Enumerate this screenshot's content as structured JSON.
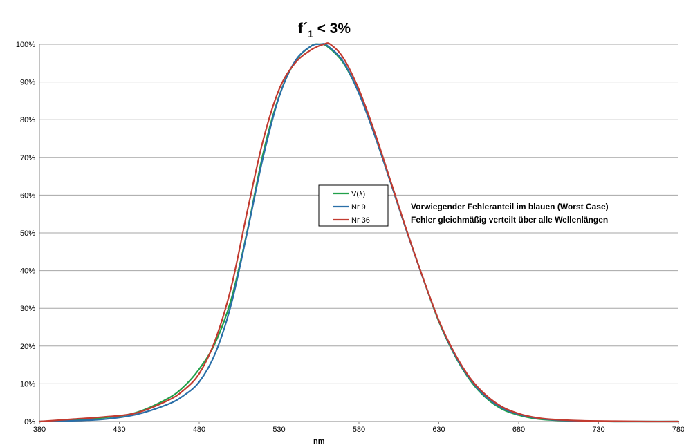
{
  "chart_data": {
    "type": "line",
    "title": {
      "prefix": "f´",
      "subscript": "1",
      "suffix": " < 3%"
    },
    "xlabel": "nm",
    "ylabel": "",
    "xlim": [
      380,
      780
    ],
    "ylim": [
      0,
      1
    ],
    "x_ticks": [
      "380",
      "430",
      "480",
      "530",
      "580",
      "630",
      "680",
      "730",
      "780"
    ],
    "y_ticks": [
      "0%",
      "10%",
      "20%",
      "30%",
      "40%",
      "50%",
      "60%",
      "70%",
      "80%",
      "90%",
      "100%"
    ],
    "grid": "horizontal",
    "legend_position": "center",
    "series": [
      {
        "name": "V(λ)",
        "color": "#21a04a",
        "x": [
          380,
          400,
          420,
          440,
          460,
          470,
          480,
          490,
          500,
          510,
          520,
          530,
          540,
          550,
          555,
          560,
          570,
          580,
          590,
          600,
          610,
          620,
          630,
          640,
          650,
          660,
          670,
          680,
          690,
          700,
          720,
          740,
          760,
          780
        ],
        "y": [
          0.0,
          0.004,
          0.01,
          0.023,
          0.06,
          0.091,
          0.139,
          0.208,
          0.323,
          0.503,
          0.71,
          0.862,
          0.954,
          0.995,
          1.0,
          0.995,
          0.952,
          0.87,
          0.757,
          0.631,
          0.503,
          0.381,
          0.265,
          0.175,
          0.107,
          0.061,
          0.032,
          0.017,
          0.008,
          0.004,
          0.001,
          0.0,
          0.0,
          0.0
        ]
      },
      {
        "name": "Nr 9",
        "color": "#2a6fa8",
        "x": [
          380,
          400,
          420,
          440,
          460,
          470,
          480,
          490,
          500,
          510,
          520,
          530,
          540,
          550,
          556,
          560,
          570,
          580,
          590,
          600,
          610,
          620,
          630,
          640,
          650,
          660,
          670,
          680,
          690,
          700,
          720,
          740,
          760,
          780
        ],
        "y": [
          0.0,
          0.002,
          0.006,
          0.018,
          0.045,
          0.068,
          0.105,
          0.18,
          0.31,
          0.5,
          0.7,
          0.86,
          0.955,
          0.995,
          1.0,
          0.997,
          0.955,
          0.87,
          0.757,
          0.631,
          0.503,
          0.381,
          0.267,
          0.177,
          0.11,
          0.064,
          0.035,
          0.019,
          0.01,
          0.005,
          0.001,
          0.0,
          0.0,
          0.0
        ]
      },
      {
        "name": "Nr 36",
        "color": "#c23b30",
        "x": [
          380,
          400,
          420,
          440,
          460,
          470,
          480,
          490,
          500,
          510,
          520,
          530,
          540,
          550,
          558,
          562,
          570,
          580,
          590,
          600,
          610,
          620,
          630,
          640,
          650,
          660,
          670,
          680,
          690,
          700,
          720,
          740,
          760,
          780
        ],
        "y": [
          0.0,
          0.006,
          0.012,
          0.022,
          0.055,
          0.082,
          0.127,
          0.215,
          0.355,
          0.555,
          0.745,
          0.88,
          0.95,
          0.985,
          1.0,
          1.0,
          0.965,
          0.88,
          0.765,
          0.635,
          0.505,
          0.382,
          0.268,
          0.18,
          0.113,
          0.068,
          0.038,
          0.021,
          0.011,
          0.006,
          0.002,
          0.001,
          0.0,
          0.0
        ]
      }
    ],
    "annotations": [
      "Vorwiegender Fehleranteil im blauen (Worst Case)",
      "Fehler gleichmäßig verteilt über alle Wellenlängen"
    ]
  }
}
